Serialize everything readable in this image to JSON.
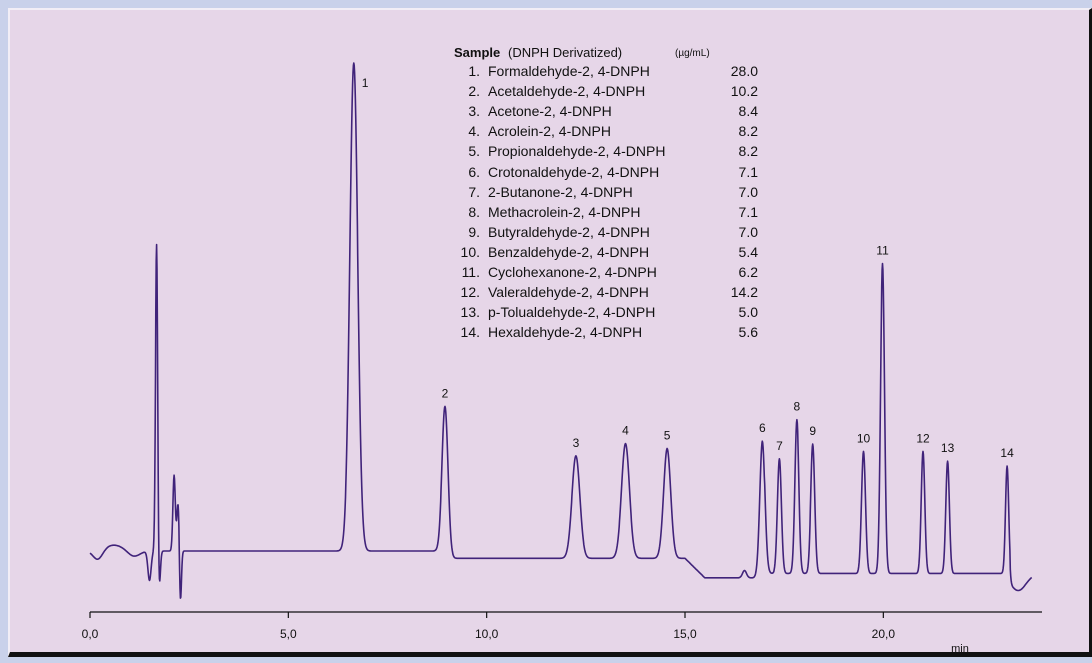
{
  "chart_data": {
    "type": "line",
    "xlabel": "min",
    "ylabel": "",
    "xlim": [
      0,
      24
    ],
    "x_ticks": [
      "0,0",
      "5,0",
      "10,0",
      "15,0",
      "20,0"
    ],
    "x_tick_values": [
      0,
      5,
      10,
      15,
      20
    ],
    "colors": {
      "trace": "#40237a",
      "axis": "#111111",
      "text": "#111111",
      "background": "#e6d6e8",
      "outer": "#c9d1ea"
    },
    "legend": {
      "title": "Sample",
      "subtitle": "(DNPH Derivatized)",
      "unit": "(µg/mL)",
      "items": [
        {
          "num": "1.",
          "name": "Formaldehyde-2, 4-DNPH",
          "value": "28.0"
        },
        {
          "num": "2.",
          "name": "Acetaldehyde-2, 4-DNPH",
          "value": "10.2"
        },
        {
          "num": "3.",
          "name": "Acetone-2, 4-DNPH",
          "value": "8.4"
        },
        {
          "num": "4.",
          "name": "Acrolein-2, 4-DNPH",
          "value": "8.2"
        },
        {
          "num": "5.",
          "name": "Propionaldehyde-2, 4-DNPH",
          "value": "8.2"
        },
        {
          "num": "6.",
          "name": "Crotonaldehyde-2, 4-DNPH",
          "value": "7.1"
        },
        {
          "num": "7.",
          "name": "2-Butanone-2, 4-DNPH",
          "value": "7.0"
        },
        {
          "num": "8.",
          "name": "Methacrolein-2, 4-DNPH",
          "value": "7.1"
        },
        {
          "num": "9.",
          "name": "Butyraldehyde-2, 4-DNPH",
          "value": "7.0"
        },
        {
          "num": "10.",
          "name": "Benzaldehyde-2, 4-DNPH",
          "value": "5.4"
        },
        {
          "num": "11.",
          "name": "Cyclohexanone-2, 4-DNPH",
          "value": "6.2"
        },
        {
          "num": "12.",
          "name": "Valeraldehyde-2, 4-DNPH",
          "value": "14.2"
        },
        {
          "num": "13.",
          "name": "p-Tolualdehyde-2, 4-DNPH",
          "value": "5.0"
        },
        {
          "num": "14.",
          "name": "Hexaldehyde-2, 4-DNPH",
          "value": "5.6"
        }
      ]
    },
    "peaks": [
      {
        "label": "1",
        "time": 6.65,
        "height": 1.0,
        "width": 0.1
      },
      {
        "label": "2",
        "time": 8.95,
        "height": 0.3,
        "width": 0.075
      },
      {
        "label": "3",
        "time": 12.25,
        "height": 0.21,
        "width": 0.1
      },
      {
        "label": "4",
        "time": 13.5,
        "height": 0.235,
        "width": 0.1
      },
      {
        "label": "5",
        "time": 14.55,
        "height": 0.225,
        "width": 0.09
      },
      {
        "label": "6",
        "time": 16.95,
        "height": 0.28,
        "width": 0.065
      },
      {
        "label": "7",
        "time": 17.38,
        "height": 0.235,
        "width": 0.05
      },
      {
        "label": "8",
        "time": 17.82,
        "height": 0.315,
        "width": 0.05
      },
      {
        "label": "9",
        "time": 18.22,
        "height": 0.265,
        "width": 0.05
      },
      {
        "label": "10",
        "time": 19.5,
        "height": 0.25,
        "width": 0.05
      },
      {
        "label": "11",
        "time": 19.98,
        "height": 0.635,
        "width": 0.05
      },
      {
        "label": "12",
        "time": 21.0,
        "height": 0.25,
        "width": 0.045
      },
      {
        "label": "13",
        "time": 21.62,
        "height": 0.23,
        "width": 0.045
      },
      {
        "label": "14",
        "time": 23.12,
        "height": 0.22,
        "width": 0.04
      }
    ],
    "solvent_front": [
      {
        "time": 1.5,
        "height": -0.06,
        "width": 0.04
      },
      {
        "time": 1.68,
        "height": 0.64,
        "width": 0.028
      },
      {
        "time": 1.74,
        "height": -0.09,
        "width": 0.03
      },
      {
        "time": 2.12,
        "height": 0.155,
        "width": 0.03
      },
      {
        "time": 2.22,
        "height": 0.1,
        "width": 0.03
      },
      {
        "time": 2.28,
        "height": -0.11,
        "width": 0.025
      }
    ]
  }
}
